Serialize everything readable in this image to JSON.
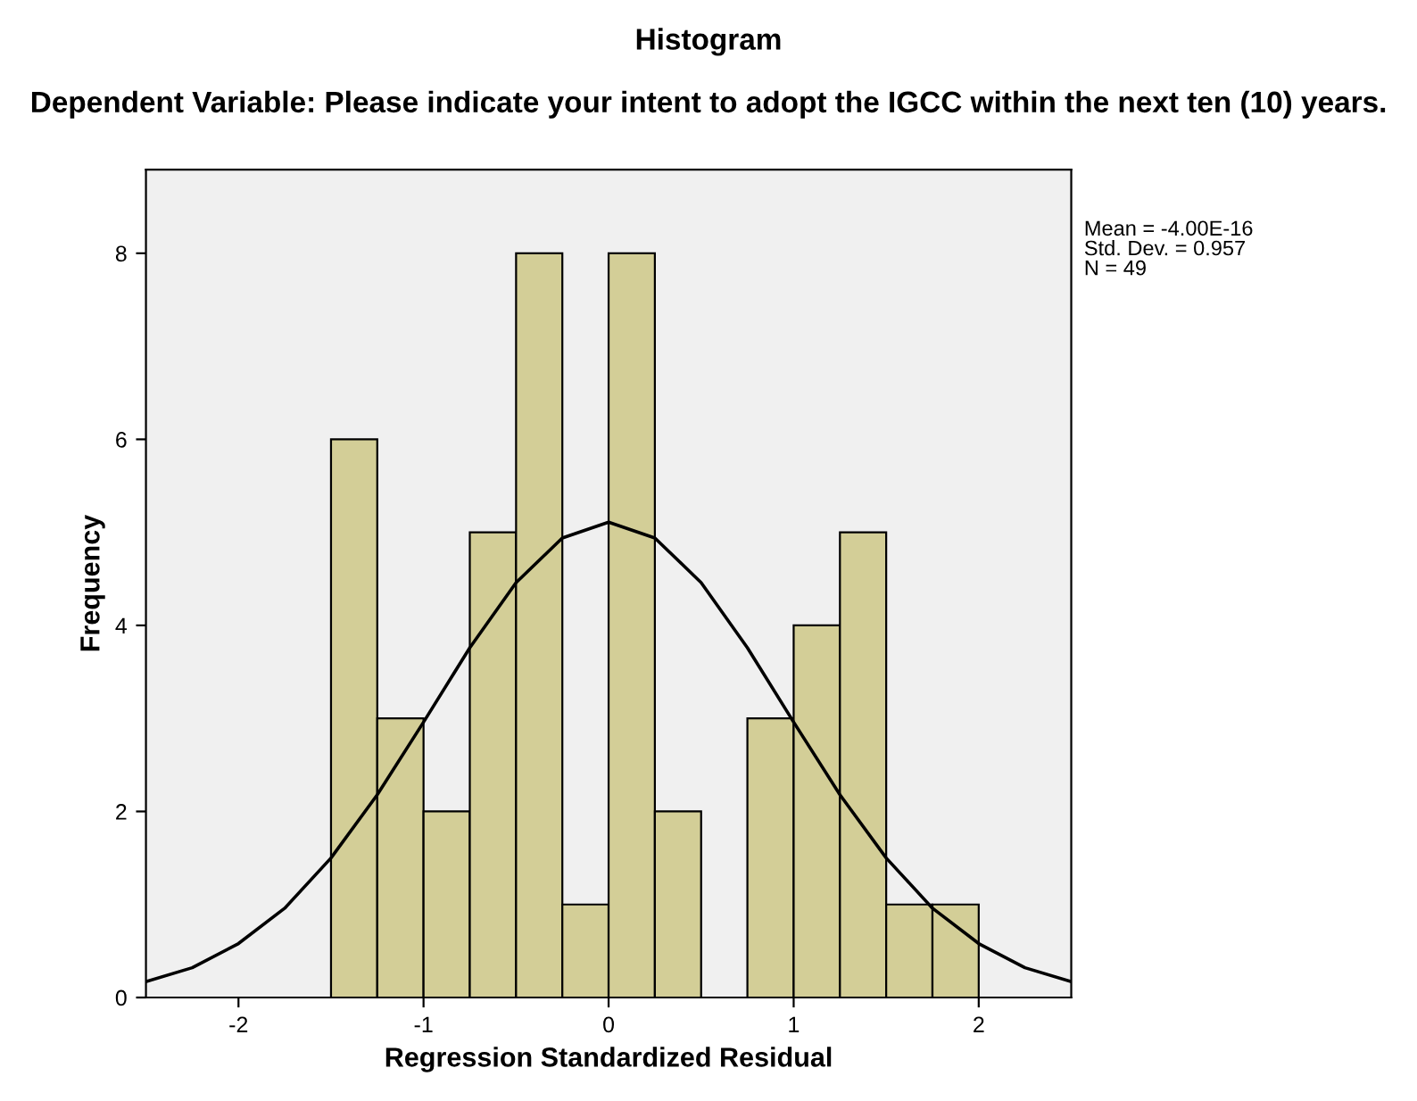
{
  "chart_data": {
    "type": "histogram",
    "title": "Histogram",
    "subtitle": "Dependent Variable: Please indicate your intent to adopt the IGCC within the next ten (10) years.",
    "xlabel": "Regression Standardized Residual",
    "ylabel": "Frequency",
    "bins": [
      -1.5,
      -1.25,
      -1.0,
      -0.75,
      -0.5,
      -0.25,
      0.0,
      0.25,
      0.5,
      0.75,
      1.0,
      1.25,
      1.5,
      1.75,
      2.0
    ],
    "values": [
      6,
      3,
      2,
      5,
      8,
      1,
      8,
      2,
      0,
      3,
      4,
      5,
      1,
      1
    ],
    "color": "#d3ce97",
    "series": [
      {
        "type": "line",
        "color": "#000000",
        "x": [
          -2.5,
          -2.25,
          -2.0,
          -1.75,
          -1.5,
          -1.25,
          -1.0,
          -0.75,
          -0.5,
          -0.25,
          0.0,
          0.25,
          0.5,
          0.75,
          1.0,
          1.25,
          1.5,
          1.75,
          2.0,
          2.25,
          2.5
        ],
        "values": [
          0.17,
          0.32,
          0.58,
          0.96,
          1.5,
          2.18,
          2.96,
          3.76,
          4.46,
          4.94,
          5.11,
          4.94,
          4.46,
          3.76,
          2.96,
          2.18,
          1.5,
          0.96,
          0.58,
          0.32,
          0.17
        ]
      }
    ],
    "annotations": [
      "Mean = -4.00E-16",
      "Std. Dev. = 0.957",
      "N = 49"
    ],
    "xlim": [
      -2.5,
      2.5
    ],
    "ylim": [
      0,
      8.9
    ],
    "xticks": [
      -2,
      -1,
      0,
      1,
      2
    ],
    "yticks": [
      0,
      2,
      4,
      6,
      8
    ],
    "grid": false,
    "legend": false
  }
}
